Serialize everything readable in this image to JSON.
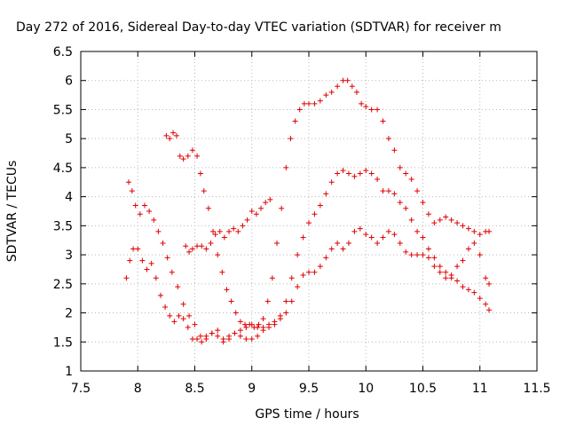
{
  "chart_data": {
    "type": "scatter",
    "title": "Day 272 of 2016, Sidereal Day-to-day VTEC variation (SDTVAR) for receiver m",
    "xlabel": "GPS time / hours",
    "ylabel": "SDTVAR / TECUs",
    "xlim": [
      7.5,
      11.5
    ],
    "ylim": [
      1,
      6.5
    ],
    "xticks": [
      "7.5",
      "8",
      "8.5",
      "9",
      "9.5",
      "10",
      "10.5",
      "11",
      "11.5"
    ],
    "yticks": [
      "1",
      "1.5",
      "2",
      "2.5",
      "3",
      "3.5",
      "4",
      "4.5",
      "5",
      "5.5",
      "6",
      "6.5"
    ],
    "grid": true,
    "marker": "+",
    "color": "#e00000",
    "series": [
      {
        "x": [
          7.9,
          7.93,
          7.96,
          8.0,
          8.04,
          8.08,
          8.12,
          8.16,
          8.2,
          8.24,
          8.28,
          8.32,
          8.36,
          8.4,
          8.44,
          8.48,
          8.52,
          8.56,
          8.6,
          8.65,
          8.7,
          8.75,
          8.8,
          8.85,
          8.9,
          8.95,
          9.0,
          9.05,
          9.1,
          9.15,
          9.2,
          9.25,
          9.3,
          9.35,
          9.4,
          9.45,
          9.5,
          9.55,
          9.6,
          9.65,
          9.7,
          9.75,
          9.8,
          9.85,
          9.9,
          9.95,
          10.0,
          10.05,
          10.1,
          10.15,
          10.2,
          10.25,
          10.3,
          10.35,
          10.4,
          10.45,
          10.5,
          10.55,
          10.6,
          10.65,
          10.7,
          10.75,
          10.8,
          10.85,
          10.9,
          10.95,
          11.0,
          11.05,
          11.08
        ],
        "y": [
          2.6,
          2.9,
          3.1,
          3.1,
          2.9,
          2.75,
          2.85,
          2.6,
          2.3,
          2.1,
          1.95,
          1.85,
          1.95,
          1.9,
          1.75,
          1.55,
          1.55,
          1.5,
          1.6,
          1.65,
          1.6,
          1.5,
          1.55,
          1.65,
          1.6,
          1.55,
          1.55,
          1.6,
          1.75,
          1.8,
          1.85,
          1.9,
          2.0,
          2.2,
          2.45,
          2.65,
          2.7,
          2.7,
          2.8,
          2.95,
          3.1,
          3.2,
          3.1,
          3.2,
          3.4,
          3.45,
          3.35,
          3.3,
          3.2,
          3.3,
          3.4,
          3.35,
          3.2,
          3.05,
          3.0,
          3.0,
          3.0,
          2.95,
          2.8,
          2.7,
          2.6,
          2.6,
          2.8,
          2.9,
          3.1,
          3.2,
          3.0,
          2.6,
          2.5
        ]
      },
      {
        "x": [
          7.92,
          7.95,
          7.98,
          8.02,
          8.06,
          8.1,
          8.14,
          8.18,
          8.22,
          8.26,
          8.3,
          8.35,
          8.4,
          8.45,
          8.5,
          8.55,
          8.6,
          8.65,
          8.7,
          8.75,
          8.8,
          8.85,
          8.9,
          8.95,
          9.0,
          9.05,
          9.1,
          9.15,
          9.2,
          9.25,
          9.3,
          9.35,
          9.4,
          9.45,
          9.5,
          9.55,
          9.6,
          9.65,
          9.7,
          9.75,
          9.8,
          9.85,
          9.9,
          9.95,
          10.0,
          10.05,
          10.1,
          10.15,
          10.2,
          10.25,
          10.3,
          10.35,
          10.4,
          10.45,
          10.5,
          10.55,
          10.6,
          10.65,
          10.7,
          10.75,
          10.8,
          10.85,
          10.9,
          10.95,
          11.0,
          11.05,
          11.08
        ],
        "y": [
          4.25,
          4.1,
          3.85,
          3.7,
          3.85,
          3.75,
          3.6,
          3.4,
          3.2,
          2.95,
          2.7,
          2.45,
          2.15,
          1.95,
          1.8,
          1.6,
          1.55,
          1.65,
          1.7,
          1.55,
          1.6,
          1.65,
          1.7,
          1.75,
          1.8,
          1.75,
          1.7,
          1.75,
          1.8,
          1.95,
          2.2,
          2.6,
          3.0,
          3.3,
          3.55,
          3.7,
          3.85,
          4.05,
          4.25,
          4.4,
          4.45,
          4.4,
          4.35,
          4.4,
          4.45,
          4.4,
          4.3,
          4.1,
          4.1,
          4.05,
          3.9,
          3.8,
          3.6,
          3.4,
          3.3,
          3.1,
          2.95,
          2.8,
          2.7,
          2.65,
          2.55,
          2.45,
          2.4,
          2.35,
          2.25,
          2.15,
          2.05
        ]
      },
      {
        "x": [
          8.25,
          8.28,
          8.31,
          8.34,
          8.37,
          8.4,
          8.44,
          8.48,
          8.52,
          8.55,
          8.58,
          8.62,
          8.66,
          8.7,
          8.74,
          8.78,
          8.82,
          8.86,
          8.9,
          8.94,
          8.98,
          9.02,
          9.06,
          9.1,
          9.14,
          9.18,
          9.22,
          9.26,
          9.3,
          9.34,
          9.38,
          9.42,
          9.46,
          9.5,
          9.55,
          9.6,
          9.65,
          9.7,
          9.75,
          9.8,
          9.84,
          9.88,
          9.92,
          9.96,
          10.0,
          10.05,
          10.1,
          10.15,
          10.2,
          10.25,
          10.3,
          10.35,
          10.4,
          10.45,
          10.5,
          10.55,
          10.6,
          10.65,
          10.7,
          10.75,
          10.8,
          10.85,
          10.9,
          10.95,
          11.0,
          11.05,
          11.08
        ],
        "y": [
          5.05,
          5.0,
          5.1,
          5.05,
          4.7,
          4.65,
          4.7,
          4.8,
          4.7,
          4.4,
          4.1,
          3.8,
          3.4,
          3.0,
          2.7,
          2.4,
          2.2,
          2.0,
          1.85,
          1.8,
          1.8,
          1.75,
          1.8,
          1.9,
          2.2,
          2.6,
          3.2,
          3.8,
          4.5,
          5.0,
          5.3,
          5.5,
          5.6,
          5.6,
          5.6,
          5.65,
          5.75,
          5.8,
          5.9,
          6.0,
          6.0,
          5.9,
          5.8,
          5.6,
          5.55,
          5.5,
          5.5,
          5.3,
          5.0,
          4.8,
          4.5,
          4.4,
          4.3,
          4.1,
          3.9,
          3.7,
          3.55,
          3.6,
          3.65,
          3.6,
          3.55,
          3.5,
          3.45,
          3.4,
          3.35,
          3.4,
          3.4
        ]
      },
      {
        "x": [
          8.42,
          8.45,
          8.48,
          8.52,
          8.56,
          8.6,
          8.64,
          8.68,
          8.72,
          8.76,
          8.8,
          8.84,
          8.88,
          8.92,
          8.96,
          9.0,
          9.04,
          9.08,
          9.12,
          9.16
        ],
        "y": [
          3.15,
          3.05,
          3.1,
          3.15,
          3.15,
          3.1,
          3.2,
          3.35,
          3.4,
          3.3,
          3.4,
          3.45,
          3.4,
          3.5,
          3.6,
          3.75,
          3.7,
          3.8,
          3.9,
          3.95
        ]
      }
    ]
  }
}
